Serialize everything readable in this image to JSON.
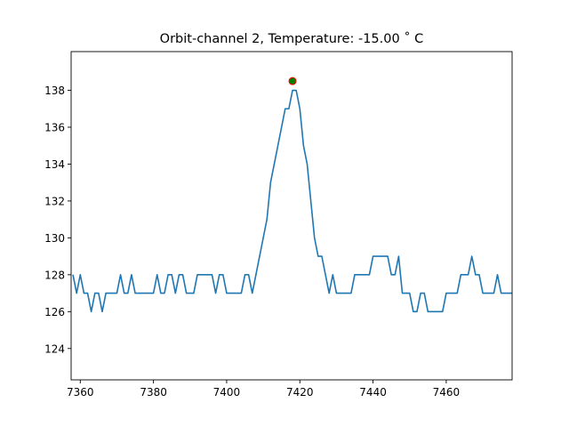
{
  "chart_data": {
    "type": "line",
    "title": "Orbit-channel 2, Temperature: -15.00  ˚ C",
    "xlabel": "",
    "ylabel": "",
    "xlim": [
      7357.5,
      7478
    ],
    "ylim": [
      122.3,
      140.1
    ],
    "xticks": [
      7360,
      7380,
      7400,
      7420,
      7440,
      7460
    ],
    "yticks": [
      124,
      126,
      128,
      130,
      132,
      134,
      136,
      138
    ],
    "grid": false,
    "line_color": "#1f77b4",
    "series": [
      {
        "x": [
          7358,
          7359,
          7360,
          7361,
          7362,
          7363,
          7364,
          7365,
          7366,
          7367,
          7368,
          7369,
          7370,
          7371,
          7372,
          7373,
          7374,
          7375,
          7376,
          7377,
          7378,
          7379,
          7380,
          7381,
          7382,
          7383,
          7384,
          7385,
          7386,
          7387,
          7388,
          7389,
          7390,
          7391,
          7392,
          7393,
          7394,
          7395,
          7396,
          7397,
          7398,
          7399,
          7400,
          7401,
          7402,
          7403,
          7404,
          7405,
          7406,
          7407,
          7408,
          7409,
          7410,
          7411,
          7412,
          7413,
          7414,
          7415,
          7416,
          7417,
          7418,
          7419,
          7420,
          7421,
          7422,
          7423,
          7424,
          7425,
          7426,
          7427,
          7428,
          7429,
          7430,
          7431,
          7432,
          7433,
          7434,
          7435,
          7436,
          7437,
          7438,
          7439,
          7440,
          7441,
          7442,
          7443,
          7444,
          7445,
          7446,
          7447,
          7448,
          7449,
          7450,
          7451,
          7452,
          7453,
          7454,
          7455,
          7456,
          7457,
          7458,
          7459,
          7460,
          7461,
          7462,
          7463,
          7464,
          7465,
          7466,
          7467,
          7468,
          7469,
          7470,
          7471,
          7472,
          7473,
          7474,
          7475,
          7476,
          7477,
          7478
        ],
        "y": [
          128,
          127,
          128,
          127,
          127,
          126,
          127,
          127,
          126,
          127,
          127,
          127,
          127,
          128,
          127,
          127,
          128,
          127,
          127,
          127,
          127,
          127,
          127,
          128,
          127,
          127,
          128,
          128,
          127,
          128,
          128,
          127,
          127,
          127,
          128,
          128,
          128,
          128,
          128,
          127,
          128,
          128,
          127,
          127,
          127,
          127,
          127,
          128,
          128,
          127,
          128,
          129,
          130,
          131,
          133,
          134,
          135,
          136,
          137,
          137,
          138,
          138,
          137,
          135,
          134,
          132,
          130,
          129,
          129,
          128,
          127,
          128,
          127,
          127,
          127,
          127,
          127,
          128,
          128,
          128,
          128,
          128,
          129,
          129,
          129,
          129,
          129,
          128,
          128,
          129,
          127,
          127,
          127,
          126,
          126,
          127,
          127,
          126,
          126,
          126,
          126,
          126,
          127,
          127,
          127,
          127,
          128,
          128,
          128,
          129,
          128,
          128,
          127,
          127,
          127,
          127,
          128,
          127,
          127,
          127,
          127
        ]
      }
    ],
    "peak_marker": {
      "x": 7418,
      "y": 138.5,
      "fill": "#008000",
      "edge": "#ff0000"
    }
  }
}
